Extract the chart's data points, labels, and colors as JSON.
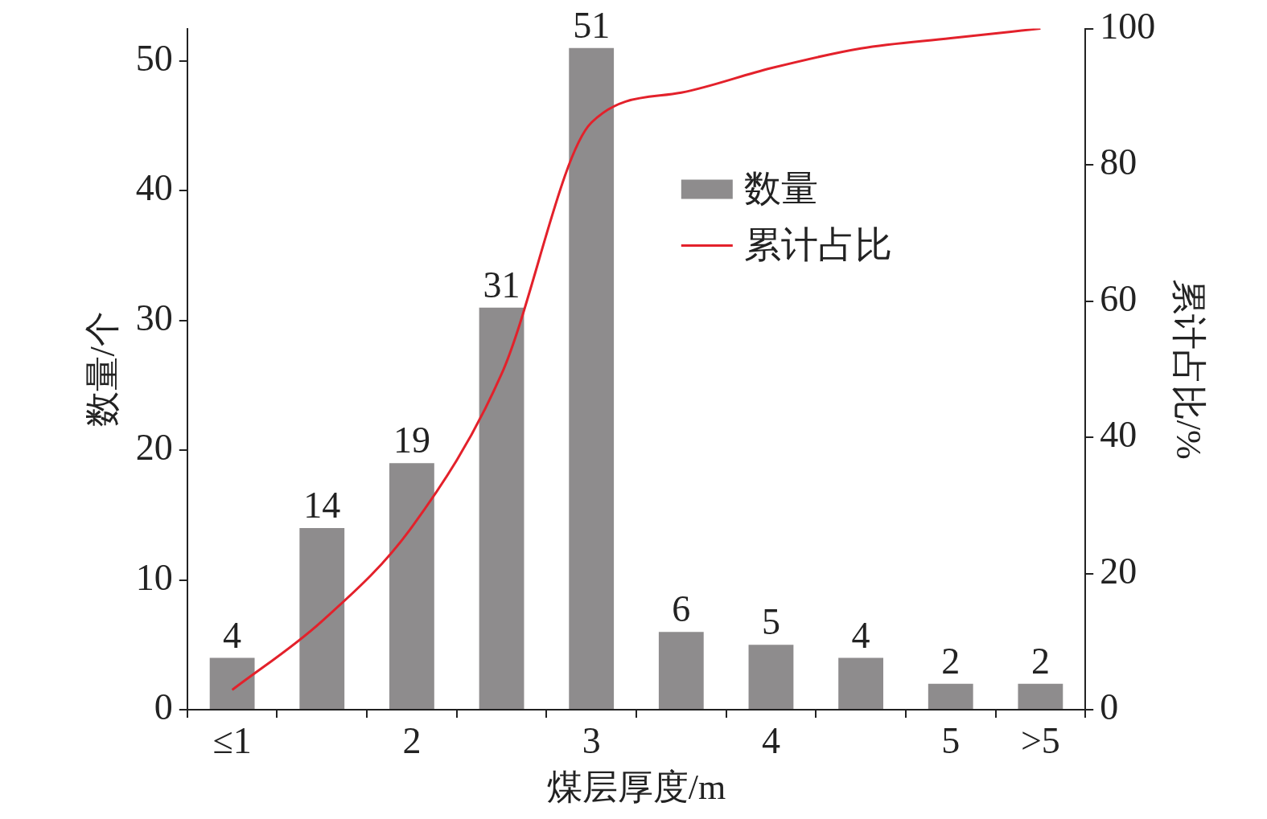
{
  "chart_data": {
    "type": "bar",
    "xlabel": "煤层厚度/m",
    "ylabel": "数量/个",
    "y2label": "累计占比/%",
    "categories": [
      "≤1",
      null,
      "2",
      null,
      "3",
      null,
      "4",
      null,
      "5",
      ">5"
    ],
    "series": [
      {
        "name": "数量",
        "color": "#8e8c8d",
        "values": [
          4,
          14,
          19,
          31,
          51,
          6,
          5,
          4,
          2,
          2
        ],
        "value_labels": [
          "4",
          "14",
          "19",
          "31",
          "51",
          "6",
          "5",
          "4",
          "2",
          "2"
        ]
      },
      {
        "name": "累计占比",
        "type": "line",
        "axis": "y2",
        "color": "#e3212b",
        "values": [
          2.9,
          13.0,
          26.8,
          49.3,
          86.2,
          90.6,
          94.2,
          97.1,
          98.6,
          100
        ]
      }
    ],
    "ylim": [
      0,
      52.5
    ],
    "yticks": [
      0,
      10,
      20,
      30,
      40,
      50
    ],
    "y2lim": [
      0,
      100
    ],
    "y2ticks": [
      0,
      20,
      40,
      60,
      80,
      100
    ],
    "grid": false,
    "legend": "top right",
    "marker": "none",
    "line_style": "solid"
  }
}
